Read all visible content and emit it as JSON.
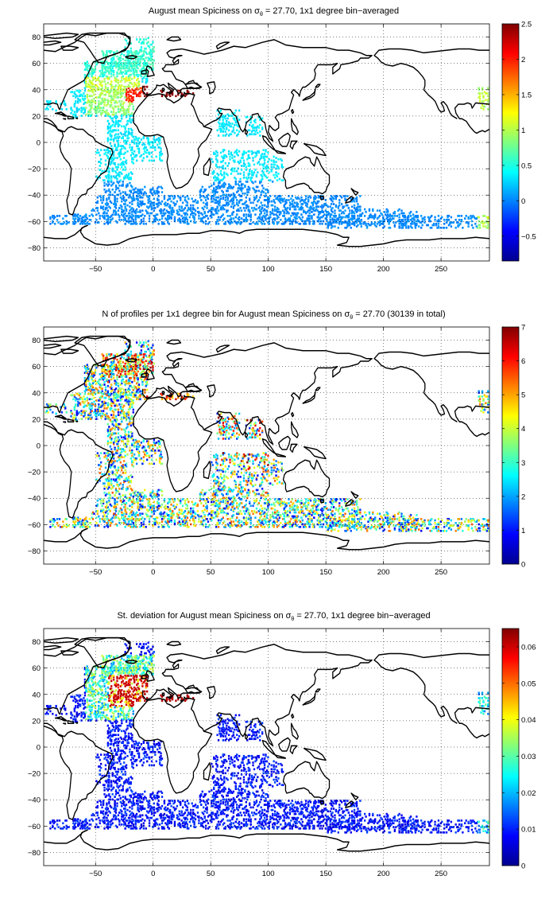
{
  "chart_data": [
    {
      "type": "heatmap",
      "title_a": "August mean Spiciness on σ",
      "title_sub": "θ",
      "title_b": " = 27.70, 1x1 degree bin−averaged",
      "xlim": [
        -95,
        292
      ],
      "ylim": [
        -90,
        90
      ],
      "xticks": [
        -50,
        0,
        50,
        100,
        150,
        200,
        250
      ],
      "yticks": [
        80,
        60,
        40,
        20,
        0,
        -20,
        -40,
        -60,
        -80
      ],
      "grid": true,
      "colorbar": {
        "range": [
          -0.85,
          2.5
        ],
        "ticks": [
          "2.5",
          "2",
          "1.5",
          "1",
          "0.5",
          "0",
          "−0.5"
        ],
        "tick_values": [
          2.5,
          2,
          1.5,
          1,
          0.5,
          0,
          -0.5
        ]
      },
      "pattern": "spice"
    },
    {
      "type": "heatmap",
      "title_a": "N of profiles per 1x1 degree bin for August mean Spiciness on σ",
      "title_sub": "θ",
      "title_b": " = 27.70 (30139 in total)",
      "xlim": [
        -95,
        292
      ],
      "ylim": [
        -90,
        90
      ],
      "xticks": [
        -50,
        0,
        50,
        100,
        150,
        200,
        250
      ],
      "yticks": [
        80,
        60,
        40,
        20,
        0,
        -20,
        -40,
        -60,
        -80
      ],
      "grid": true,
      "colorbar": {
        "range": [
          0,
          7
        ],
        "ticks": [
          "7",
          "6",
          "5",
          "4",
          "3",
          "2",
          "1",
          "0"
        ],
        "tick_values": [
          7,
          6,
          5,
          4,
          3,
          2,
          1,
          0
        ]
      },
      "pattern": "count"
    },
    {
      "type": "heatmap",
      "title_a": "St. deviation for August mean Spiciness on σ",
      "title_sub": "θ",
      "title_b": " = 27.70, 1x1 degree bin−averaged",
      "xlim": [
        -95,
        292
      ],
      "ylim": [
        -90,
        90
      ],
      "xticks": [
        -50,
        0,
        50,
        100,
        150,
        200,
        250
      ],
      "yticks": [
        80,
        60,
        40,
        20,
        0,
        -20,
        -40,
        -60,
        -80
      ],
      "grid": true,
      "colorbar": {
        "range": [
          0,
          0.065
        ],
        "ticks": [
          "0.06",
          "0.05",
          "0.04",
          "0.03",
          "0.02",
          "0.01",
          "0"
        ],
        "tick_values": [
          0.06,
          0.05,
          0.04,
          0.03,
          0.02,
          0.01,
          0
        ]
      },
      "pattern": "std"
    }
  ]
}
